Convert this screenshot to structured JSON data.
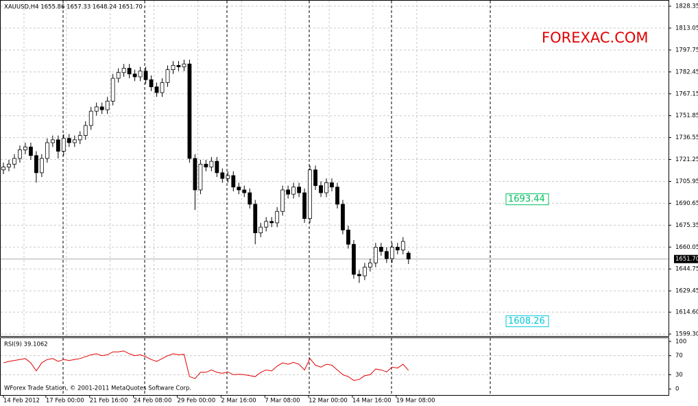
{
  "chart_data": {
    "type": "candlestick",
    "header": "XAUUSD,H4 1655.86 1657.33 1648.24 1651.70",
    "watermark": "FOREXAC.COM",
    "footer": "WForex Trade Station, © 2001-2011 MetaQuotes Software Corp.",
    "open": [
      1714,
      1716,
      1718,
      1722,
      1728,
      1730,
      1724,
      1712,
      1722,
      1733,
      1735,
      1727,
      1736,
      1733,
      1735,
      1738,
      1745,
      1755,
      1758,
      1756,
      1762,
      1778,
      1782,
      1785,
      1781,
      1779,
      1783,
      1777,
      1772,
      1768,
      1775,
      1784,
      1787,
      1786,
      1788,
      1722,
      1700,
      1718,
      1716,
      1720,
      1712,
      1708,
      1710,
      1702,
      1700,
      1698,
      1690,
      1670,
      1674,
      1678,
      1677,
      1685,
      1700,
      1697,
      1702,
      1698,
      1680,
      1714,
      1703,
      1698,
      1705,
      1702,
      1690,
      1672,
      1662,
      1641,
      1640,
      1646,
      1649,
      1660,
      1657,
      1652,
      1660,
      1658,
      1655.86
    ],
    "high": [
      1719,
      1721,
      1725,
      1731,
      1733,
      1733,
      1727,
      1725,
      1736,
      1738,
      1738,
      1739,
      1739,
      1738,
      1741,
      1748,
      1758,
      1761,
      1761,
      1765,
      1781,
      1785,
      1788,
      1788,
      1784,
      1786,
      1786,
      1780,
      1775,
      1778,
      1787,
      1790,
      1790,
      1791,
      1791,
      1725,
      1721,
      1721,
      1723,
      1723,
      1715,
      1713,
      1713,
      1705,
      1703,
      1701,
      1693,
      1677,
      1681,
      1681,
      1688,
      1703,
      1703,
      1705,
      1705,
      1701,
      1717,
      1717,
      1706,
      1708,
      1708,
      1705,
      1693,
      1675,
      1665,
      1644,
      1649,
      1652,
      1663,
      1663,
      1660,
      1663,
      1663,
      1667,
      1657.33
    ],
    "low": [
      1711,
      1713,
      1715,
      1719,
      1725,
      1721,
      1705,
      1709,
      1719,
      1730,
      1722,
      1724,
      1730,
      1730,
      1732,
      1735,
      1742,
      1752,
      1753,
      1753,
      1759,
      1775,
      1779,
      1778,
      1776,
      1776,
      1774,
      1769,
      1765,
      1765,
      1772,
      1781,
      1783,
      1783,
      1719,
      1686,
      1697,
      1713,
      1713,
      1709,
      1705,
      1705,
      1699,
      1697,
      1695,
      1687,
      1662,
      1667,
      1671,
      1674,
      1674,
      1682,
      1694,
      1694,
      1695,
      1677,
      1677,
      1700,
      1695,
      1695,
      1699,
      1687,
      1669,
      1659,
      1638,
      1635,
      1637,
      1643,
      1646,
      1654,
      1649,
      1649,
      1655,
      1655,
      1648.24
    ],
    "close": [
      1716,
      1718,
      1722,
      1728,
      1730,
      1724,
      1712,
      1722,
      1733,
      1735,
      1727,
      1736,
      1733,
      1735,
      1738,
      1745,
      1755,
      1758,
      1756,
      1762,
      1778,
      1782,
      1785,
      1781,
      1779,
      1783,
      1777,
      1772,
      1768,
      1775,
      1784,
      1787,
      1786,
      1788,
      1722,
      1700,
      1718,
      1716,
      1720,
      1712,
      1708,
      1710,
      1702,
      1700,
      1698,
      1690,
      1670,
      1674,
      1678,
      1677,
      1685,
      1700,
      1697,
      1702,
      1698,
      1680,
      1714,
      1703,
      1698,
      1705,
      1702,
      1690,
      1672,
      1662,
      1641,
      1640,
      1646,
      1649,
      1660,
      1657,
      1652,
      1660,
      1658,
      1664,
      1651.7
    ],
    "xlim": [
      0,
      122
    ],
    "xticks": [
      {
        "value": 0.5,
        "label": "14 Feb 2012"
      },
      {
        "value": 8.25,
        "label": "17 Feb 00:00"
      },
      {
        "value": 16.25,
        "label": "21 Feb 16:00"
      },
      {
        "value": 24.25,
        "label": "24 Feb 08:00"
      },
      {
        "value": 32.25,
        "label": "29 Feb 00:00"
      },
      {
        "value": 40.25,
        "label": "2 Mar 16:00"
      },
      {
        "value": 48.25,
        "label": "7 Mar 08:00"
      },
      {
        "value": 56.25,
        "label": "12 Mar 00:00"
      },
      {
        "value": 64.25,
        "label": "14 Mar 16:00"
      },
      {
        "value": 72.25,
        "label": "19 Mar 08:00"
      }
    ],
    "ylim": [
      1597.9,
      1832.2
    ],
    "yticks": [
      1828.35,
      1813.05,
      1797.75,
      1782.45,
      1767.15,
      1751.85,
      1736.55,
      1721.25,
      1705.95,
      1690.65,
      1675.35,
      1660.05,
      1644.75,
      1629.45,
      {
        "value": 1614.6,
        "label": "1614.60"
      },
      {
        "value": 1599.3,
        "label": "1599.30"
      }
    ],
    "current_price": {
      "value": 1651.7,
      "label": "1651.70"
    },
    "levels": [
      {
        "value": 1693.44,
        "label": "1693.44",
        "color": "#00c060"
      },
      {
        "value": 1608.26,
        "label": "1608.26",
        "color": "#00c8d8"
      }
    ],
    "grid": true,
    "rsi": {
      "title": "RSI(9) 39.1062",
      "color": "#e00000",
      "ylim": [
        -12.7,
        107
      ],
      "yticks": [
        100,
        70,
        30,
        0
      ],
      "values": [
        55,
        58,
        60,
        62,
        64,
        55,
        38,
        55,
        62,
        64,
        58,
        62,
        60,
        62,
        64,
        68,
        72,
        74,
        70,
        72,
        78,
        78,
        80,
        74,
        70,
        72,
        68,
        62,
        58,
        64,
        70,
        74,
        72,
        73,
        26,
        22,
        35,
        35,
        40,
        35,
        33,
        36,
        30,
        31,
        30,
        28,
        26,
        35,
        40,
        38,
        48,
        55,
        52,
        56,
        52,
        40,
        64,
        50,
        46,
        52,
        50,
        40,
        30,
        26,
        18,
        20,
        28,
        30,
        42,
        40,
        36,
        46,
        44,
        52,
        39.1062
      ]
    }
  }
}
